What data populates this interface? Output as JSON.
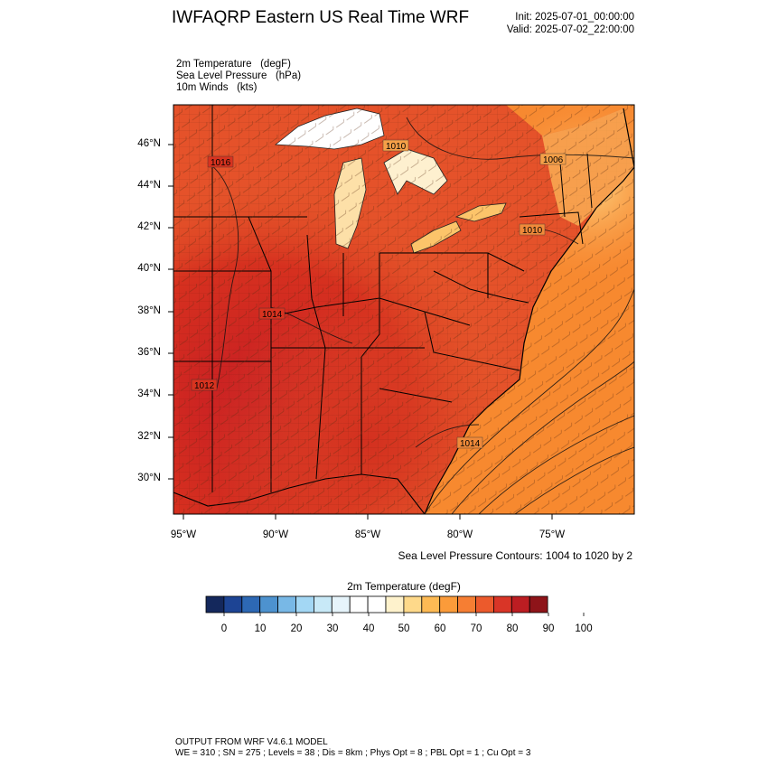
{
  "header": {
    "title": "IWFAQRP Eastern US Real Time WRF",
    "init": "Init: 2025-07-01_00:00:00",
    "valid": "Valid: 2025-07-02_22:00:00"
  },
  "fields": [
    "2m Temperature   (degF)",
    "Sea Level Pressure   (hPa)",
    "10m Winds   (kts)"
  ],
  "map": {
    "latitude_labels": [
      "46°N",
      "44°N",
      "42°N",
      "40°N",
      "38°N",
      "36°N",
      "34°N",
      "32°N",
      "30°N"
    ],
    "longitude_labels": [
      "95°W",
      "90°W",
      "85°W",
      "80°W",
      "75°W"
    ],
    "pressure_contour_labels": [
      "1010",
      "1006",
      "1016",
      "1010",
      "1014",
      "1012",
      "1014"
    ],
    "contour_note": "Sea Level Pressure Contours: 1004 to 1020 by 2"
  },
  "colorbar": {
    "title": "2m Temperature  (degF)",
    "labels": [
      "0",
      "10",
      "20",
      "30",
      "40",
      "50",
      "60",
      "70",
      "80",
      "90",
      "100"
    ],
    "colors": [
      "#14285c",
      "#1d4494",
      "#2d68b4",
      "#4d92cf",
      "#78b8e6",
      "#a3d7f4",
      "#c8e9f7",
      "#e6f4fb",
      "#ffffff",
      "#ffffff",
      "#fef2cc",
      "#fed98a",
      "#fdba54",
      "#fb9b3a",
      "#f67e33",
      "#ec5a2c",
      "#d93527",
      "#bc1d22",
      "#8e1419"
    ]
  },
  "footer": {
    "line1": "OUTPUT FROM WRF V4.6.1 MODEL",
    "line2": "WE = 310 ; SN = 275 ; Levels = 38 ; Dis = 8km ; Phys Opt = 8 ; PBL Opt = 1 ; Cu Opt = 3"
  }
}
